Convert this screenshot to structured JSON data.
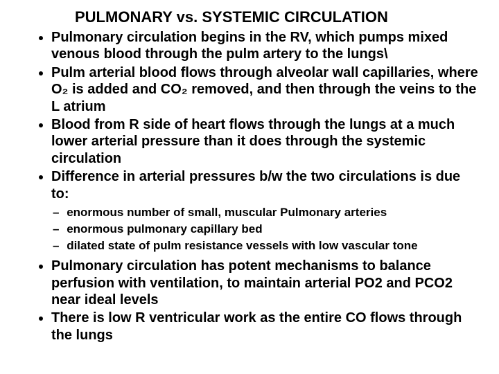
{
  "title": "PULMONARY vs. SYSTEMIC CIRCULATION",
  "bullets": [
    "Pulmonary circulation begins in the RV, which pumps mixed venous blood through the pulm artery to the lungs\\",
    "Pulm arterial blood flows through alveolar wall capillaries, where O₂ is added and CO₂ removed, and then through the veins to the L atrium",
    "Blood from R side of heart flows through the lungs at a much lower arterial pressure than it does through the systemic circulation",
    "Difference in arterial pressures b/w the two circulations is due to:"
  ],
  "sub_bullets": [
    "enormous number of small, muscular Pulmonary arteries",
    "enormous pulmonary capillary bed",
    "dilated state of pulm resistance vessels with low vascular tone"
  ],
  "bullets2": [
    "Pulmonary circulation has potent mechanisms to balance perfusion with ventilation, to maintain arterial PO2 and PCO2 near ideal levels",
    "There is low R ventricular work as the entire CO flows through the lungs"
  ],
  "style": {
    "background_color": "#ffffff",
    "text_color": "#000000",
    "font_family": "Arial",
    "title_fontsize": 22,
    "body_fontsize": 20,
    "sub_fontsize": 17,
    "font_weight": "bold"
  }
}
